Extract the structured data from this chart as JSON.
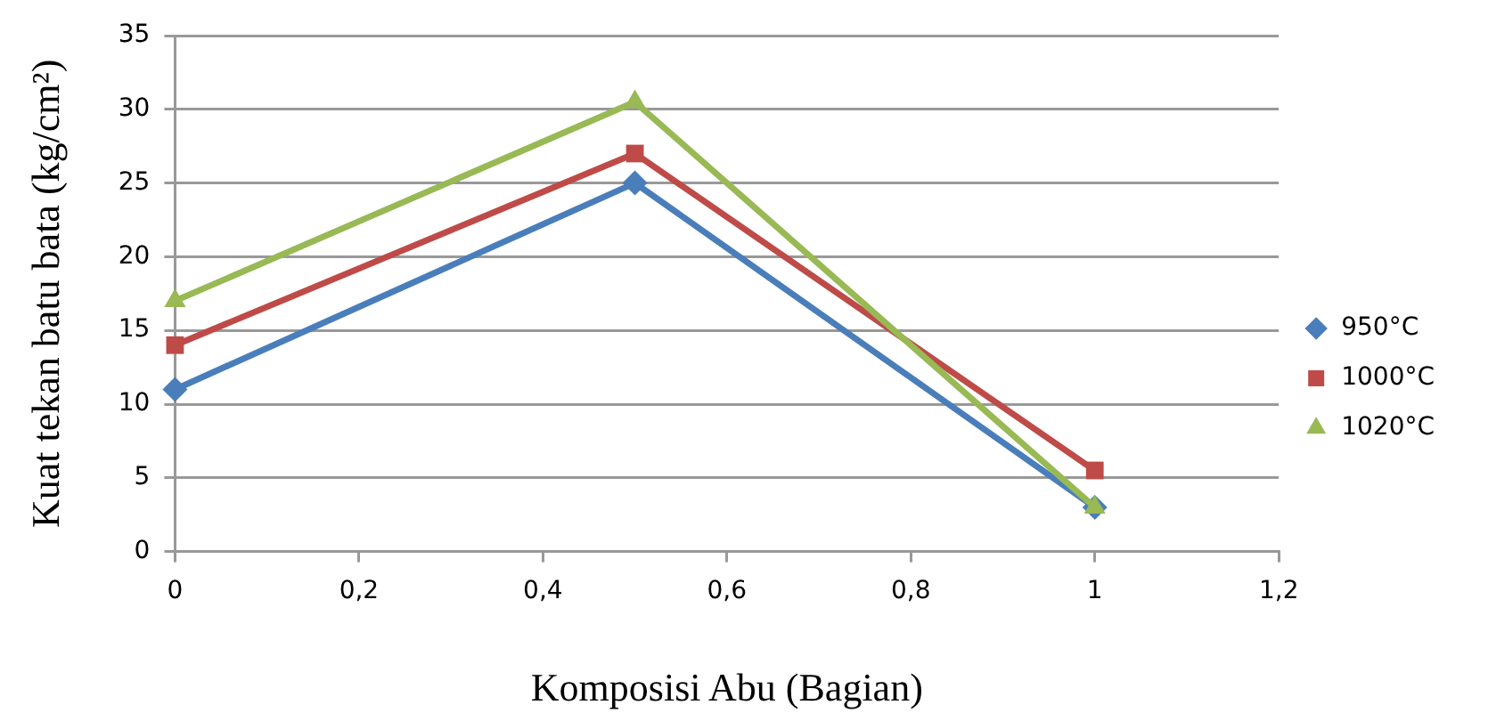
{
  "chart_data": {
    "type": "line",
    "xlabel": "Komposisi Abu (Bagian)",
    "ylabel": "Kuat tekan batu bata (kg/cm²)",
    "x": [
      0,
      0.5,
      1
    ],
    "series": [
      {
        "name": "950°C",
        "color": "#4a7ebb",
        "marker": "diamond",
        "values": [
          11,
          25,
          3
        ]
      },
      {
        "name": "1000°C",
        "color": "#be4b48",
        "marker": "square",
        "values": [
          14,
          27,
          5.5
        ]
      },
      {
        "name": "1020°C",
        "color": "#98b954",
        "marker": "triangle",
        "values": [
          17,
          30.5,
          3
        ]
      }
    ],
    "xlim": [
      0,
      1.2
    ],
    "xticks": [
      {
        "value": 0,
        "label": "0"
      },
      {
        "value": 0.2,
        "label": "0,2"
      },
      {
        "value": 0.4,
        "label": "0,4"
      },
      {
        "value": 0.6,
        "label": "0,6"
      },
      {
        "value": 0.8,
        "label": "0,8"
      },
      {
        "value": 1,
        "label": "1"
      },
      {
        "value": 1.2,
        "label": "1,2"
      }
    ],
    "ylim": [
      0,
      35
    ],
    "yticks": [
      0,
      5,
      10,
      15,
      20,
      25,
      30,
      35
    ],
    "grid": "y",
    "legend": "right"
  }
}
